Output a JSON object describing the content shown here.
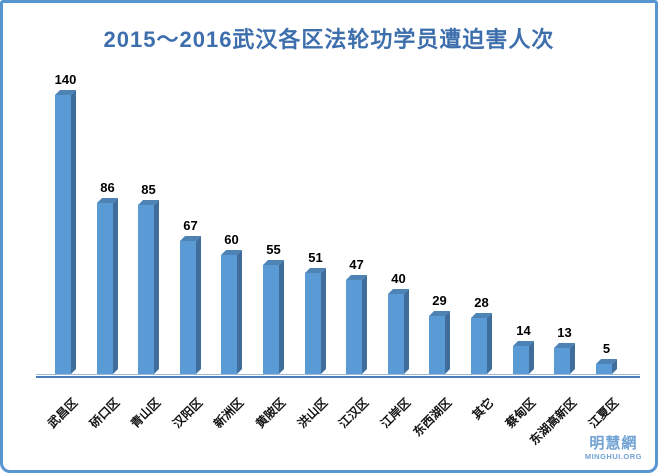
{
  "frame": {
    "border_color": "#5896d2",
    "background": "#ffffff"
  },
  "header": {
    "title": "2015～2016武汉各区法轮功学员遭迫害人次",
    "title_color": "#3e6fad"
  },
  "watermark": {
    "cn": "明慧網",
    "en": "MINGHUI.ORG",
    "color": "#71a3d3"
  },
  "chart_data": {
    "type": "bar",
    "style": "3d-extruded-columns",
    "title": "2015～2016武汉各区法轮功学员遭迫害人次",
    "categories": [
      "武昌区",
      "硚口区",
      "青山区",
      "汉阳区",
      "新洲区",
      "黄陂区",
      "洪山区",
      "江汉区",
      "江岸区",
      "东西湖区",
      "其它",
      "蔡甸区",
      "东湖高新区",
      "江夏区"
    ],
    "values": [
      140,
      86,
      85,
      67,
      60,
      55,
      51,
      47,
      40,
      29,
      28,
      14,
      13,
      5
    ],
    "xlabel": "",
    "ylabel": "",
    "ylim": [
      0,
      150
    ],
    "grid": false,
    "legend": false,
    "value_labels_shown": true,
    "category_label_rotation_deg": -45,
    "bar_colors": {
      "front": "#5b9bd5",
      "top": "#4d83b5",
      "side": "#3f6d9c"
    },
    "axis_colors": {
      "thin_line": "#9db9dd",
      "thick_line": "#4a7ebb"
    },
    "value_label_color": "#000000",
    "category_label_color": "#141414"
  }
}
